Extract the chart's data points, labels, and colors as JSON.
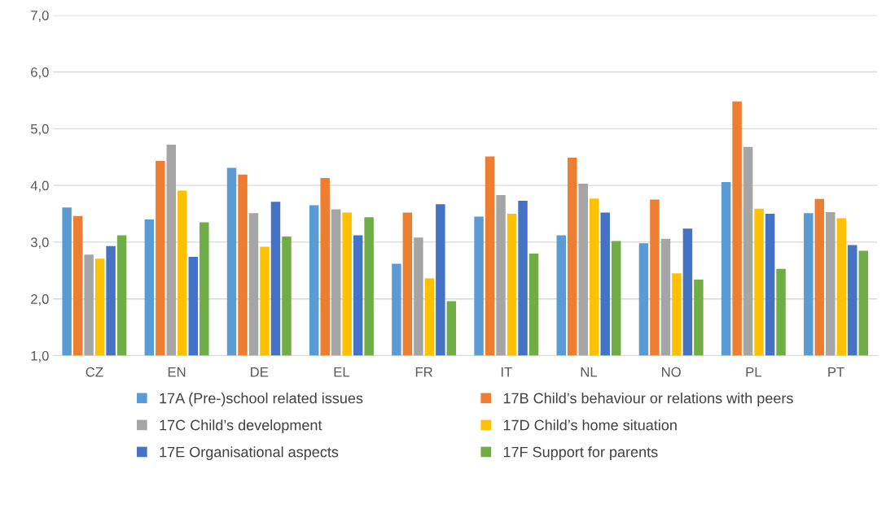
{
  "chart_data": {
    "type": "bar",
    "categories": [
      "CZ",
      "EN",
      "DE",
      "EL",
      "FR",
      "IT",
      "NL",
      "NO",
      "PL",
      "PT"
    ],
    "series": [
      {
        "name": "17A (Pre-)school related issues",
        "color": "#5b9bd5",
        "values": [
          3.61,
          3.4,
          4.31,
          3.65,
          2.62,
          3.45,
          3.12,
          2.98,
          4.06,
          3.51
        ]
      },
      {
        "name": "17B Child’s behaviour or relations with peers",
        "color": "#ed7d31",
        "values": [
          3.46,
          4.43,
          4.19,
          4.13,
          3.52,
          4.51,
          4.49,
          3.75,
          5.48,
          3.76
        ]
      },
      {
        "name": "17C Child’s development",
        "color": "#a5a5a5",
        "values": [
          2.78,
          4.72,
          3.51,
          3.58,
          3.08,
          3.83,
          4.03,
          3.06,
          4.68,
          3.53
        ]
      },
      {
        "name": "17D Child’s home situation",
        "color": "#ffc000",
        "values": [
          2.71,
          3.91,
          2.92,
          3.52,
          2.36,
          3.5,
          3.77,
          2.45,
          3.59,
          3.42
        ]
      },
      {
        "name": "17E Organisational aspects",
        "color": "#4472c4",
        "values": [
          2.93,
          2.74,
          3.71,
          3.12,
          3.67,
          3.73,
          3.52,
          3.24,
          3.5,
          2.95
        ]
      },
      {
        "name": "17F Support for parents",
        "color": "#70ad47",
        "values": [
          3.12,
          3.35,
          3.1,
          3.44,
          1.96,
          2.8,
          3.02,
          2.34,
          2.53,
          2.85
        ]
      }
    ],
    "ylim": [
      1,
      7
    ],
    "yticks": [
      {
        "value": 1,
        "label": "1,0"
      },
      {
        "value": 2,
        "label": "2,0"
      },
      {
        "value": 3,
        "label": "3,0"
      },
      {
        "value": 4,
        "label": "4,0"
      },
      {
        "value": 5,
        "label": "5,0"
      },
      {
        "value": 6,
        "label": "6,0"
      },
      {
        "value": 7,
        "label": "7,0"
      }
    ],
    "grid": "y",
    "legend": "bottom"
  }
}
